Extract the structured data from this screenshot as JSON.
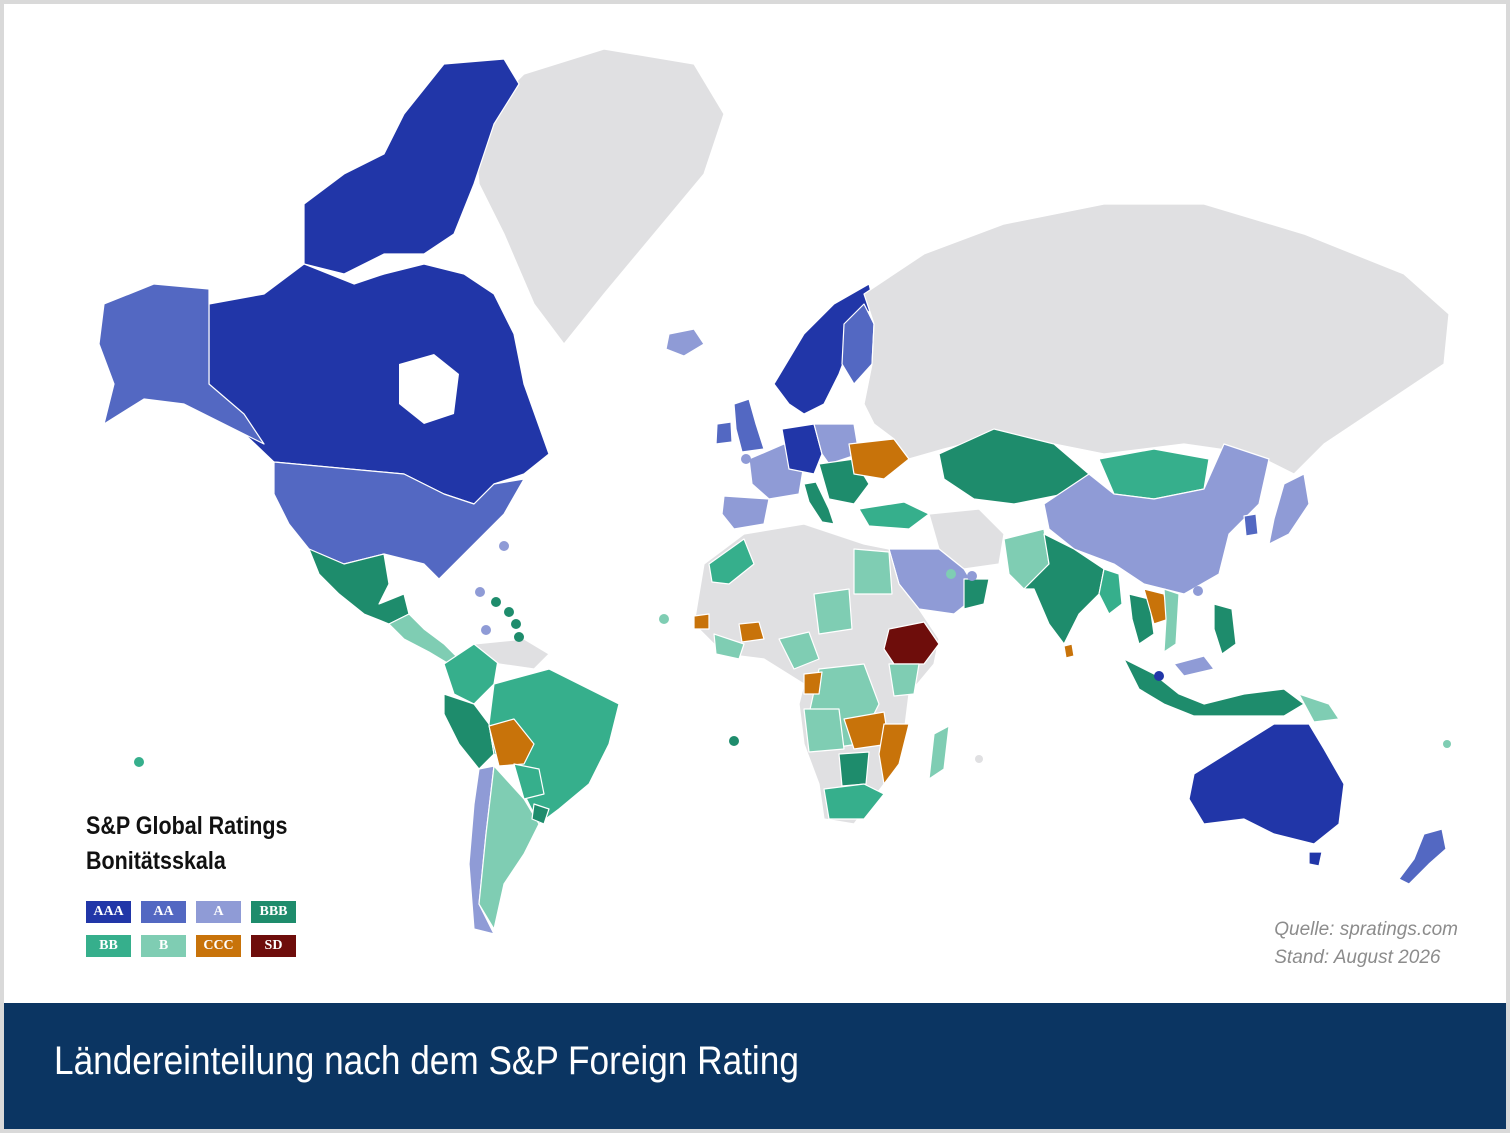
{
  "legend": {
    "title_line1": "S&P Global Ratings",
    "title_line2": "Bonitätsskala",
    "items": [
      {
        "label": "AAA",
        "color": "#2136a8"
      },
      {
        "label": "AA",
        "color": "#5368c2"
      },
      {
        "label": "A",
        "color": "#8f9bd6"
      },
      {
        "label": "BBB",
        "color": "#1e8c6c"
      },
      {
        "label": "BB",
        "color": "#36af8c"
      },
      {
        "label": "B",
        "color": "#7fcdb3"
      },
      {
        "label": "CCC",
        "color": "#c8730a"
      },
      {
        "label": "SD",
        "color": "#6e0d0b"
      }
    ]
  },
  "source": {
    "line1": "Quelle: spratings.com",
    "line2": "Stand: August 2026"
  },
  "footer": {
    "title": "Ländereinteilung nach dem S&P Foreign Rating"
  },
  "colors": {
    "unrated": "#e0e0e2",
    "footer_bg": "#0b3562"
  }
}
